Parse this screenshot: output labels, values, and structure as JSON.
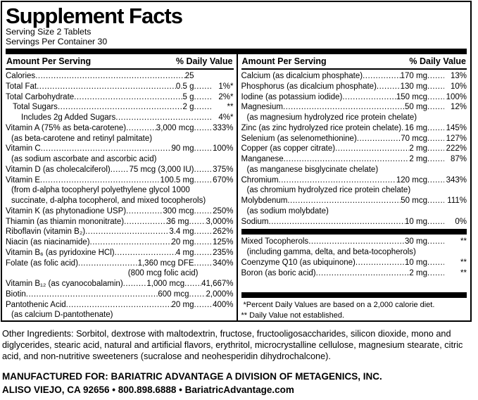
{
  "header": {
    "title": "Supplement Facts",
    "serving_size": "Serving Size 2 Tablets",
    "servings_per_container": "Servings Per Container 30"
  },
  "columns_header": {
    "amount": "Amount Per Serving",
    "dv": "% Daily Value"
  },
  "left_rows": [
    {
      "name": "Calories",
      "amount": "25",
      "pct": ""
    },
    {
      "name": "Total Fat",
      "amount": "0.5 g",
      "pct": "1%*"
    },
    {
      "name": "Total Carbohydrate",
      "amount": "5 g",
      "pct": "2%*"
    },
    {
      "name": "Total Sugars",
      "amount": "2 g",
      "pct": "**",
      "indent": 1
    },
    {
      "name": "Includes 2g Added Sugars",
      "amount": "",
      "pct": "4%*",
      "indent": 2
    },
    {
      "name": "Vitamin A (75% as beta-carotene)",
      "amount": "3,000 mcg",
      "pct": "333%"
    },
    {
      "type": "sub",
      "text": "(as beta-carotene and retinyl palmitate)"
    },
    {
      "name": "Vitamin C",
      "amount": "90 mg",
      "pct": "100%"
    },
    {
      "type": "sub",
      "text": "(as sodium ascorbate and ascorbic acid)"
    },
    {
      "name": "Vitamin D (as cholecalciferol)",
      "amount": "75 mcg (3,000 IU)",
      "pct": "375%"
    },
    {
      "name": "Vitamin E",
      "amount": "100.5 mg",
      "pct": "670%"
    },
    {
      "type": "sub",
      "text": "(from d-alpha tocopheryl polyethylene glycol 1000"
    },
    {
      "type": "sub",
      "text": "succinate, d-alpha tocopherol, and mixed tocopherols)"
    },
    {
      "name": "Vitamin K (as phytonadione USP)",
      "amount": "300 mcg",
      "pct": "250%"
    },
    {
      "name": "Thiamin (as thiamin mononitrate)",
      "amount": "36 mg",
      "pct": "3,000%"
    },
    {
      "name": "Riboflavin (vitamin B₂)",
      "amount": "3.4 mg",
      "pct": "262%"
    },
    {
      "name": "Niacin (as niacinamide)",
      "amount": "20 mg",
      "pct": "125%"
    },
    {
      "name": "Vitamin B₆ (as pyridoxine HCl)",
      "amount": "4 mg",
      "pct": "235%"
    },
    {
      "name": "Folate (as folic acid)",
      "amount": "1,360 mcg DFE",
      "pct": "340%"
    },
    {
      "type": "note",
      "text": "(800 mcg folic acid)"
    },
    {
      "name": "Vitamin B₁₂ (as cyanocobalamin)",
      "amount": "1,000 mcg",
      "pct": "41,667%"
    },
    {
      "name": "Biotin",
      "amount": "600 mcg",
      "pct": "2,000%"
    },
    {
      "name": "Pantothenic Acid",
      "amount": "20 mg",
      "pct": "400%"
    },
    {
      "type": "sub",
      "text": "(as calcium D-pantothenate)"
    }
  ],
  "right_rows": [
    {
      "name": "Calcium (as dicalcium phosphate)",
      "amount": "170 mg",
      "pct": "13%"
    },
    {
      "name": "Phosphorus (as dicalcium phosphate)",
      "amount": "130 mg",
      "pct": "10%"
    },
    {
      "name": "Iodine (as potassium iodide)",
      "amount": "150 mcg",
      "pct": "100%"
    },
    {
      "name": "Magnesium",
      "amount": "50 mg",
      "pct": "12%"
    },
    {
      "type": "sub",
      "text": "(as magnesium hydrolyzed rice protein chelate)"
    },
    {
      "name": "Zinc (as zinc hydrolyzed rice protein chelate)",
      "amount": "16 mg",
      "pct": "145%"
    },
    {
      "name": "Selenium (as selenomethionine)",
      "amount": "70 mcg",
      "pct": "127%"
    },
    {
      "name": "Copper (as copper citrate)",
      "amount": "2 mg",
      "pct": "222%"
    },
    {
      "name": "Manganese",
      "amount": "2 mg",
      "pct": "87%"
    },
    {
      "type": "sub",
      "text": "(as manganese bisglycinate chelate)"
    },
    {
      "name": "Chromium",
      "amount": "120 mcg",
      "pct": "343%"
    },
    {
      "type": "sub",
      "text": "(as chromium hydrolyzed rice protein chelate)"
    },
    {
      "name": "Molybdenum",
      "amount": "50 mcg",
      "pct": "111%"
    },
    {
      "type": "sub",
      "text": "(as sodium molybdate)"
    },
    {
      "name": "Sodium",
      "amount": "10 mg",
      "pct": "0%"
    },
    {
      "type": "bar"
    },
    {
      "name": "Mixed Tocopherols",
      "amount": "30 mg",
      "pct": "**"
    },
    {
      "type": "sub",
      "text": "(including gamma, delta, and beta-tocopherols)"
    },
    {
      "name": "Coenzyme Q10 (as ubiquinone)",
      "amount": "10 mg",
      "pct": "**"
    },
    {
      "name": "Boron (as boric acid)",
      "amount": "2 mg",
      "pct": "**"
    },
    {
      "type": "bar",
      "push": true
    },
    {
      "type": "foot",
      "text": "*Percent Daily Values are based on a 2,000 calorie diet.",
      "indent": 1
    },
    {
      "type": "foot",
      "text": "** Daily Value not established."
    }
  ],
  "other_ingredients": "Other Ingredients: Sorbitol, dextrose with maltodextrin, fructose, fructooligosaccharides, silicon dioxide, mono and diglycerides, stearic acid, natural and artificial flavors, erythritol, microcrystalline cellulose, magnesium stearate, citric acid, and non-nutritive sweeteners (sucralose and neohesperidin dihydrochalcone).",
  "manufacturer": {
    "line1": "MANUFACTURED FOR: BARIATRIC ADVANTAGE A DIVISION OF METAGENICS, INC.",
    "line2": "ALISO VIEJO, CA 92656 • 800.898.6888 • BariatricAdvantage.com"
  }
}
